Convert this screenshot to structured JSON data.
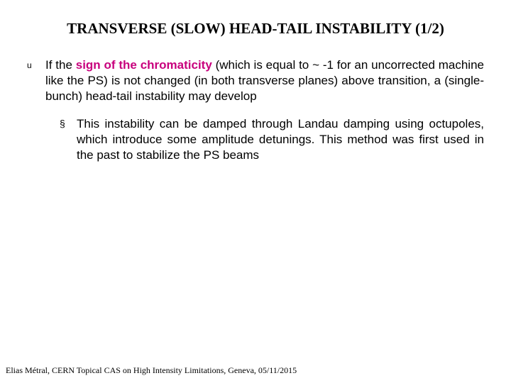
{
  "title": {
    "text": "TRANSVERSE (SLOW) HEAD-TAIL INSTABILITY (1/2)",
    "fontsize": 21,
    "color": "#000000"
  },
  "body": {
    "fontsize": 17,
    "color": "#000000",
    "highlight_color": "#c8007d",
    "lvl1": {
      "bullet_glyph": "u",
      "pre": "If the ",
      "highlight": "sign of the chromaticity",
      "post": " (which is equal to ~ -1 for an uncorrected machine like the PS) is not changed (in both transverse planes) above transition, a (single-bunch) head-tail instability may develop"
    },
    "lvl2": {
      "bullet_glyph": "§",
      "text": "This instability can be damped through Landau damping using octupoles, which introduce some amplitude detunings. This method was first used in the past to stabilize the PS beams"
    }
  },
  "footer": {
    "text": "Elias Métral, CERN Topical CAS on High Intensity Limitations, Geneva, 05/11/2015",
    "fontsize": 12,
    "color": "#000000"
  }
}
